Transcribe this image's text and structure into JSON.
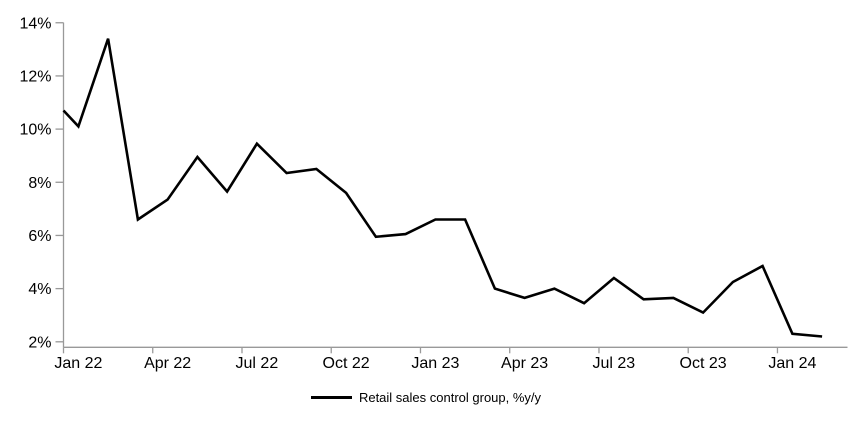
{
  "chart_data": {
    "type": "line",
    "title": "",
    "xlabel": "",
    "ylabel": "",
    "ylim": [
      2,
      14
    ],
    "y_tick_labels": [
      "2%",
      "4%",
      "6%",
      "8%",
      "10%",
      "12%",
      "14%"
    ],
    "x_tick_labels": [
      "Jan 22",
      "Apr 22",
      "Jul 22",
      "Oct 22",
      "Jan 23",
      "Apr 23",
      "Jul 23",
      "Oct 23",
      "Jan 24"
    ],
    "grid": false,
    "legend_position": "bottom-center",
    "axis_color": "#999999",
    "series": [
      {
        "name": "Retail sales control group, %y/y",
        "color": "#000000",
        "lead_in_value_at_axis": 10.7,
        "months": [
          "Jan 22",
          "Feb 22",
          "Mar 22",
          "Apr 22",
          "May 22",
          "Jun 22",
          "Jul 22",
          "Aug 22",
          "Sep 22",
          "Oct 22",
          "Nov 22",
          "Dec 22",
          "Jan 23",
          "Feb 23",
          "Mar 23",
          "Apr 23",
          "May 23",
          "Jun 23",
          "Jul 23",
          "Aug 23",
          "Sep 23",
          "Oct 23",
          "Nov 23",
          "Dec 23",
          "Jan 24",
          "Feb 24"
        ],
        "values": [
          10.1,
          13.4,
          6.6,
          7.35,
          8.95,
          7.65,
          9.45,
          8.35,
          8.5,
          7.6,
          5.95,
          6.05,
          6.6,
          6.6,
          4.0,
          3.65,
          4.0,
          3.45,
          4.4,
          3.6,
          3.65,
          3.1,
          4.25,
          4.85,
          2.3,
          2.2
        ]
      }
    ]
  }
}
